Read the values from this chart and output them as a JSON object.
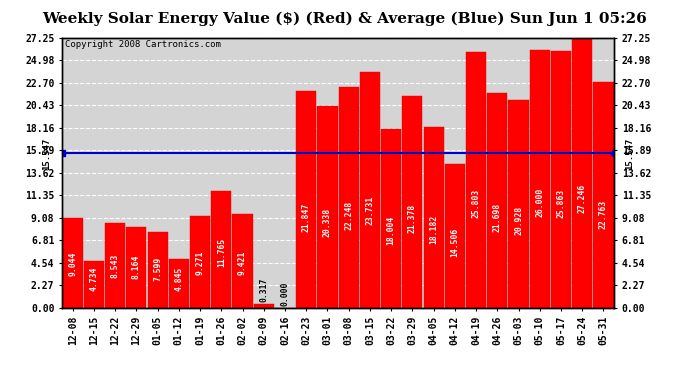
{
  "title": "Weekly Solar Energy Value ($) (Red) & Average (Blue) Sun Jun 1 05:26",
  "copyright": "Copyright 2008 Cartronics.com",
  "average": 15.547,
  "categories": [
    "12-08",
    "12-15",
    "12-22",
    "12-29",
    "01-05",
    "01-12",
    "01-19",
    "01-26",
    "02-02",
    "02-09",
    "02-16",
    "02-23",
    "03-01",
    "03-08",
    "03-15",
    "03-22",
    "03-29",
    "04-05",
    "04-12",
    "04-19",
    "04-26",
    "05-03",
    "05-10",
    "05-17",
    "05-24",
    "05-31"
  ],
  "values": [
    9.044,
    4.734,
    8.543,
    8.164,
    7.599,
    4.845,
    9.271,
    11.765,
    9.421,
    0.317,
    0.0,
    21.847,
    20.338,
    22.248,
    23.731,
    18.004,
    21.378,
    18.182,
    14.506,
    25.803,
    21.698,
    20.928,
    26.0,
    25.863,
    27.246,
    22.763
  ],
  "ylim": [
    0,
    27.25
  ],
  "yticks": [
    0.0,
    2.27,
    4.54,
    6.81,
    9.08,
    11.35,
    13.62,
    15.89,
    18.16,
    20.43,
    22.7,
    24.98,
    27.25
  ],
  "bar_color": "#ff0000",
  "bar_edge_color": "#dd0000",
  "avg_line_color": "#0000cc",
  "bg_color": "#ffffff",
  "plot_bg_color": "#d4d4d4",
  "grid_color": "#ffffff",
  "title_fontsize": 11,
  "tick_fontsize": 7,
  "value_fontsize": 5.8,
  "copyright_fontsize": 6.5,
  "avg_label_fontsize": 6.5
}
